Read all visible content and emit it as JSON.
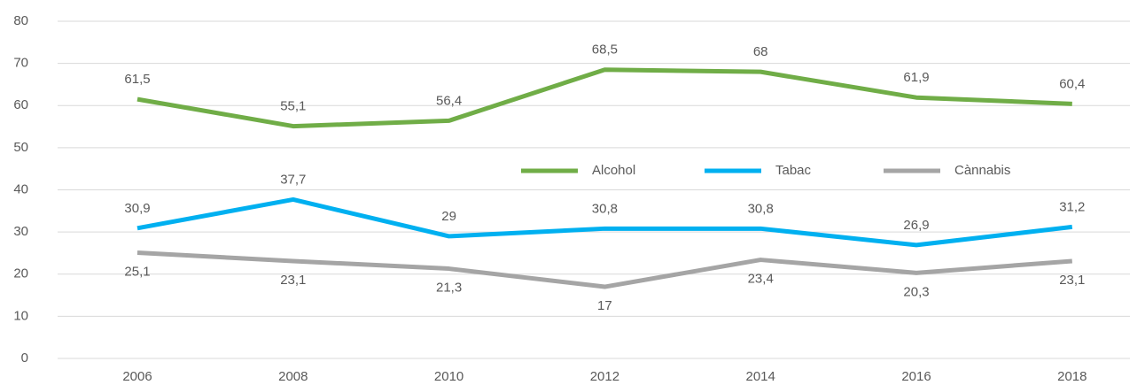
{
  "chart_data": {
    "type": "line",
    "categories": [
      "2006",
      "2008",
      "2010",
      "2012",
      "2014",
      "2016",
      "2018"
    ],
    "series": [
      {
        "name": "Alcohol",
        "color": "#70ad47",
        "values": [
          61.5,
          55.1,
          56.4,
          68.5,
          68,
          61.9,
          60.4
        ],
        "value_labels": [
          "61,5",
          "55,1",
          "56,4",
          "68,5",
          "68",
          "61,9",
          "60,4"
        ]
      },
      {
        "name": "Tabac",
        "color": "#00b0f0",
        "values": [
          30.9,
          37.7,
          29,
          30.8,
          30.8,
          26.9,
          31.2
        ],
        "value_labels": [
          "30,9",
          "37,7",
          "29",
          "30,8",
          "30,8",
          "26,9",
          "31,2"
        ]
      },
      {
        "name": "Cànnabis",
        "color": "#a5a5a5",
        "values": [
          25.1,
          23.1,
          21.3,
          17,
          23.4,
          20.3,
          23.1
        ],
        "value_labels": [
          "25,1",
          "23,1",
          "21,3",
          "17",
          "23,4",
          "20,3",
          "23,1"
        ]
      }
    ],
    "ylim": [
      0,
      80
    ],
    "yticks": [
      0,
      10,
      20,
      30,
      40,
      50,
      60,
      70,
      80
    ],
    "grid": true
  }
}
